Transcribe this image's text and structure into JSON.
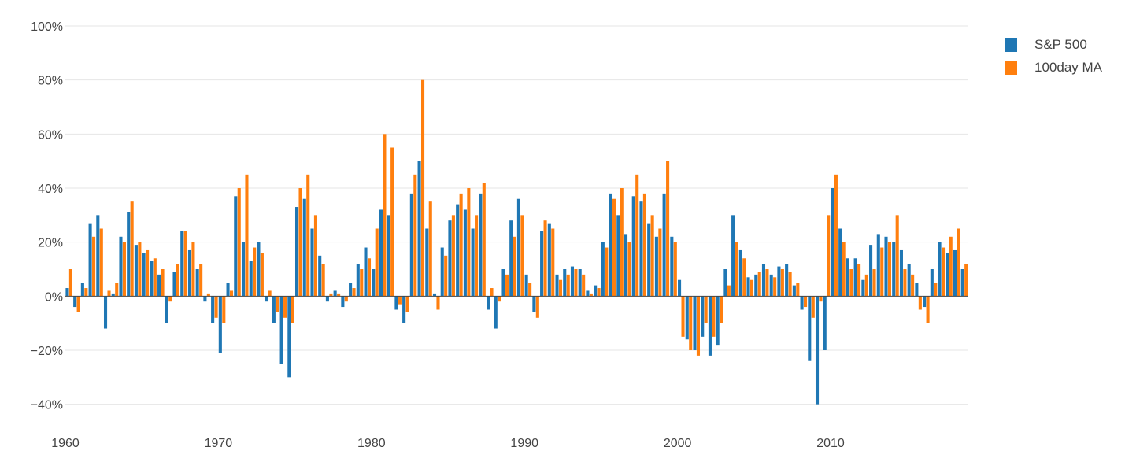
{
  "chart_data": {
    "type": "bar",
    "title": "",
    "xlabel": "",
    "ylabel": "",
    "xlim": [
      1960,
      2019
    ],
    "ylim": [
      -0.5,
      1.0
    ],
    "y_ticks": [
      1.0,
      0.8,
      0.6,
      0.4,
      0.2,
      0.0,
      -0.2,
      -0.4
    ],
    "y_tick_labels": [
      "100%",
      "80%",
      "60%",
      "40%",
      "20%",
      "0%",
      "−20%",
      "−40%"
    ],
    "x_ticks": [
      1960,
      1970,
      1980,
      1990,
      2000,
      2010
    ],
    "x_tick_labels": [
      "1960",
      "1970",
      "1980",
      "1990",
      "2000",
      "2010"
    ],
    "grid": "horizontal",
    "legend_position": "top-right",
    "series": [
      {
        "name": "S&P 500",
        "color": "#1f77b4",
        "x": [
          1960.0,
          1960.5,
          1961.0,
          1961.5,
          1962.0,
          1962.5,
          1963.0,
          1963.5,
          1964.0,
          1964.5,
          1965.0,
          1965.5,
          1966.0,
          1966.5,
          1967.0,
          1967.5,
          1968.0,
          1968.5,
          1969.0,
          1969.5,
          1970.0,
          1970.5,
          1971.0,
          1971.5,
          1972.0,
          1972.5,
          1973.0,
          1973.5,
          1974.0,
          1974.5,
          1975.0,
          1975.5,
          1976.0,
          1976.5,
          1977.0,
          1977.5,
          1978.0,
          1978.5,
          1979.0,
          1979.5,
          1980.0,
          1980.5,
          1981.0,
          1981.5,
          1982.0,
          1982.5,
          1983.0,
          1983.5,
          1984.0,
          1984.5,
          1985.0,
          1985.5,
          1986.0,
          1986.5,
          1987.0,
          1987.5,
          1988.0,
          1988.5,
          1989.0,
          1989.5,
          1990.0,
          1990.5,
          1991.0,
          1991.5,
          1992.0,
          1992.5,
          1993.0,
          1993.5,
          1994.0,
          1994.5,
          1995.0,
          1995.5,
          1996.0,
          1996.5,
          1997.0,
          1997.5,
          1998.0,
          1998.5,
          1999.0,
          1999.5,
          2000.0,
          2000.5,
          2001.0,
          2001.5,
          2002.0,
          2002.5,
          2003.0,
          2003.5,
          2004.0,
          2004.5,
          2005.0,
          2005.5,
          2006.0,
          2006.5,
          2007.0,
          2007.5,
          2008.0,
          2008.5,
          2009.0,
          2009.5,
          2010.0,
          2010.5,
          2011.0,
          2011.5,
          2012.0,
          2012.5,
          2013.0,
          2013.5,
          2014.0,
          2014.5,
          2015.0,
          2015.5,
          2016.0,
          2016.5,
          2017.0,
          2017.5,
          2018.0,
          2018.5
        ],
        "values": [
          0.03,
          -0.04,
          0.05,
          0.27,
          0.3,
          -0.12,
          0.01,
          0.22,
          0.31,
          0.19,
          0.16,
          0.13,
          0.08,
          -0.1,
          0.09,
          0.24,
          0.17,
          0.1,
          -0.02,
          -0.1,
          -0.21,
          0.05,
          0.37,
          0.2,
          0.13,
          0.2,
          -0.02,
          -0.1,
          -0.25,
          -0.3,
          0.33,
          0.36,
          0.25,
          0.15,
          -0.02,
          0.02,
          -0.04,
          0.05,
          0.12,
          0.18,
          0.1,
          0.32,
          0.3,
          -0.05,
          -0.1,
          0.38,
          0.5,
          0.25,
          0.01,
          0.18,
          0.28,
          0.34,
          0.32,
          0.25,
          0.38,
          -0.05,
          -0.12,
          0.1,
          0.28,
          0.36,
          0.08,
          -0.06,
          0.24,
          0.27,
          0.08,
          0.1,
          0.11,
          0.1,
          0.02,
          0.04,
          0.2,
          0.38,
          0.3,
          0.23,
          0.37,
          0.35,
          0.27,
          0.22,
          0.38,
          0.22,
          0.06,
          -0.16,
          -0.2,
          -0.15,
          -0.22,
          -0.18,
          0.1,
          0.3,
          0.17,
          0.07,
          0.08,
          0.12,
          0.08,
          0.11,
          0.12,
          0.04,
          -0.05,
          -0.24,
          -0.4,
          -0.2,
          0.4,
          0.25,
          0.14,
          0.14,
          0.06,
          0.19,
          0.23,
          0.22,
          0.2,
          0.17,
          0.12,
          0.05,
          -0.04,
          0.1,
          0.2,
          0.16,
          0.17,
          0.1
        ]
      },
      {
        "name": "100day MA",
        "color": "#ff7f0e",
        "x": [
          1960.0,
          1960.5,
          1961.0,
          1961.5,
          1962.0,
          1962.5,
          1963.0,
          1963.5,
          1964.0,
          1964.5,
          1965.0,
          1965.5,
          1966.0,
          1966.5,
          1967.0,
          1967.5,
          1968.0,
          1968.5,
          1969.0,
          1969.5,
          1970.0,
          1970.5,
          1971.0,
          1971.5,
          1972.0,
          1972.5,
          1973.0,
          1973.5,
          1974.0,
          1974.5,
          1975.0,
          1975.5,
          1976.0,
          1976.5,
          1977.0,
          1977.5,
          1978.0,
          1978.5,
          1979.0,
          1979.5,
          1980.0,
          1980.5,
          1981.0,
          1981.5,
          1982.0,
          1982.5,
          1983.0,
          1983.5,
          1984.0,
          1984.5,
          1985.0,
          1985.5,
          1986.0,
          1986.5,
          1987.0,
          1987.5,
          1988.0,
          1988.5,
          1989.0,
          1989.5,
          1990.0,
          1990.5,
          1991.0,
          1991.5,
          1992.0,
          1992.5,
          1993.0,
          1993.5,
          1994.0,
          1994.5,
          1995.0,
          1995.5,
          1996.0,
          1996.5,
          1997.0,
          1997.5,
          1998.0,
          1998.5,
          1999.0,
          1999.5,
          2000.0,
          2000.5,
          2001.0,
          2001.5,
          2002.0,
          2002.5,
          2003.0,
          2003.5,
          2004.0,
          2004.5,
          2005.0,
          2005.5,
          2006.0,
          2006.5,
          2007.0,
          2007.5,
          2008.0,
          2008.5,
          2009.0,
          2009.5,
          2010.0,
          2010.5,
          2011.0,
          2011.5,
          2012.0,
          2012.5,
          2013.0,
          2013.5,
          2014.0,
          2014.5,
          2015.0,
          2015.5,
          2016.0,
          2016.5,
          2017.0,
          2017.5,
          2018.0,
          2018.5
        ],
        "values": [
          0.1,
          -0.06,
          0.03,
          0.22,
          0.25,
          0.02,
          0.05,
          0.2,
          0.35,
          0.2,
          0.17,
          0.14,
          0.1,
          -0.02,
          0.12,
          0.24,
          0.2,
          0.12,
          0.01,
          -0.08,
          -0.1,
          0.02,
          0.4,
          0.45,
          0.18,
          0.16,
          0.02,
          -0.06,
          -0.08,
          -0.1,
          0.4,
          0.45,
          0.3,
          0.12,
          0.01,
          0.01,
          -0.02,
          0.03,
          0.1,
          0.14,
          0.25,
          0.6,
          0.55,
          -0.03,
          -0.06,
          0.45,
          0.8,
          0.35,
          -0.05,
          0.15,
          0.3,
          0.38,
          0.4,
          0.3,
          0.42,
          0.03,
          -0.02,
          0.08,
          0.22,
          0.3,
          0.05,
          -0.08,
          0.28,
          0.25,
          0.06,
          0.08,
          0.1,
          0.08,
          0.01,
          0.03,
          0.18,
          0.36,
          0.4,
          0.2,
          0.45,
          0.38,
          0.3,
          0.25,
          0.5,
          0.2,
          -0.15,
          -0.2,
          -0.22,
          -0.1,
          -0.15,
          -0.1,
          0.04,
          0.2,
          0.14,
          0.06,
          0.09,
          0.1,
          0.07,
          0.1,
          0.09,
          0.05,
          -0.04,
          -0.08,
          -0.02,
          0.3,
          0.45,
          0.2,
          0.1,
          0.12,
          0.08,
          0.1,
          0.18,
          0.2,
          0.3,
          0.1,
          0.08,
          -0.05,
          -0.1,
          0.05,
          0.18,
          0.22,
          0.25,
          0.12
        ]
      }
    ]
  }
}
